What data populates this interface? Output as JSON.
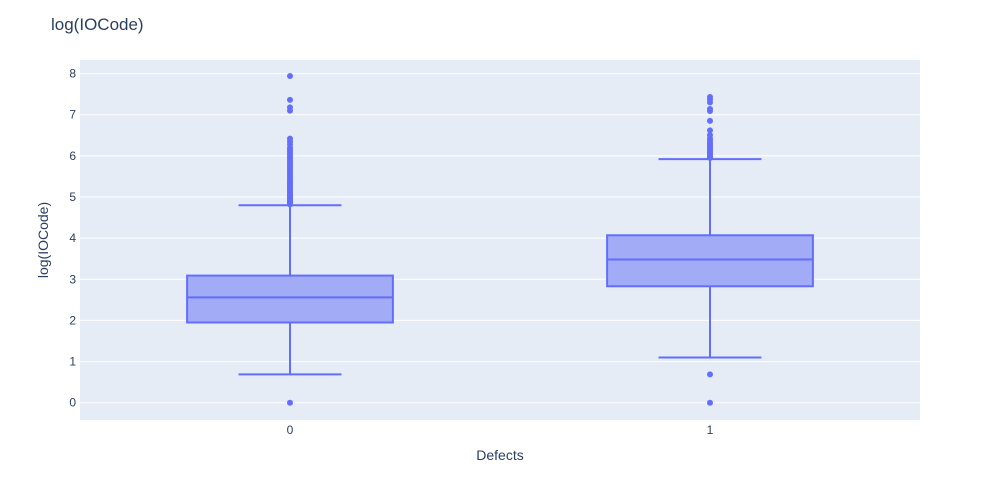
{
  "chart_data": {
    "type": "box",
    "title": "log(IOCode)",
    "xlabel": "Defects",
    "ylabel": "log(IOCode)",
    "categories": [
      "0",
      "1"
    ],
    "yticks": [
      "0",
      "1",
      "2",
      "3",
      "4",
      "5",
      "6",
      "7",
      "8"
    ],
    "ylim": [
      -0.42,
      8.33
    ],
    "grid": true,
    "colors": {
      "box_fill": "#a2abf6",
      "box_line": "#636efa",
      "plot_bg": "#e5ecf6",
      "grid": "#ffffff"
    },
    "boxes": [
      {
        "category": "0",
        "lower_fence": 0.69,
        "q1": 1.95,
        "median": 2.56,
        "q3": 3.09,
        "upper_fence": 4.8,
        "outliers": [
          0.0,
          4.82,
          4.85,
          4.88,
          4.9,
          4.93,
          4.96,
          5.0,
          5.03,
          5.06,
          5.1,
          5.13,
          5.17,
          5.2,
          5.24,
          5.28,
          5.32,
          5.36,
          5.4,
          5.45,
          5.5,
          5.55,
          5.6,
          5.65,
          5.7,
          5.75,
          5.8,
          5.85,
          5.9,
          5.95,
          6.0,
          6.05,
          6.1,
          6.15,
          6.2,
          6.28,
          6.35,
          6.42,
          7.1,
          7.18,
          7.36,
          7.94
        ]
      },
      {
        "category": "1",
        "lower_fence": 1.1,
        "q1": 2.83,
        "median": 3.48,
        "q3": 4.07,
        "upper_fence": 5.92,
        "outliers": [
          0.0,
          0.69,
          5.95,
          5.98,
          6.01,
          6.05,
          6.09,
          6.13,
          6.17,
          6.21,
          6.26,
          6.31,
          6.36,
          6.42,
          6.5,
          6.62,
          6.85,
          7.09,
          7.14,
          7.3,
          7.37,
          7.43
        ]
      }
    ]
  }
}
